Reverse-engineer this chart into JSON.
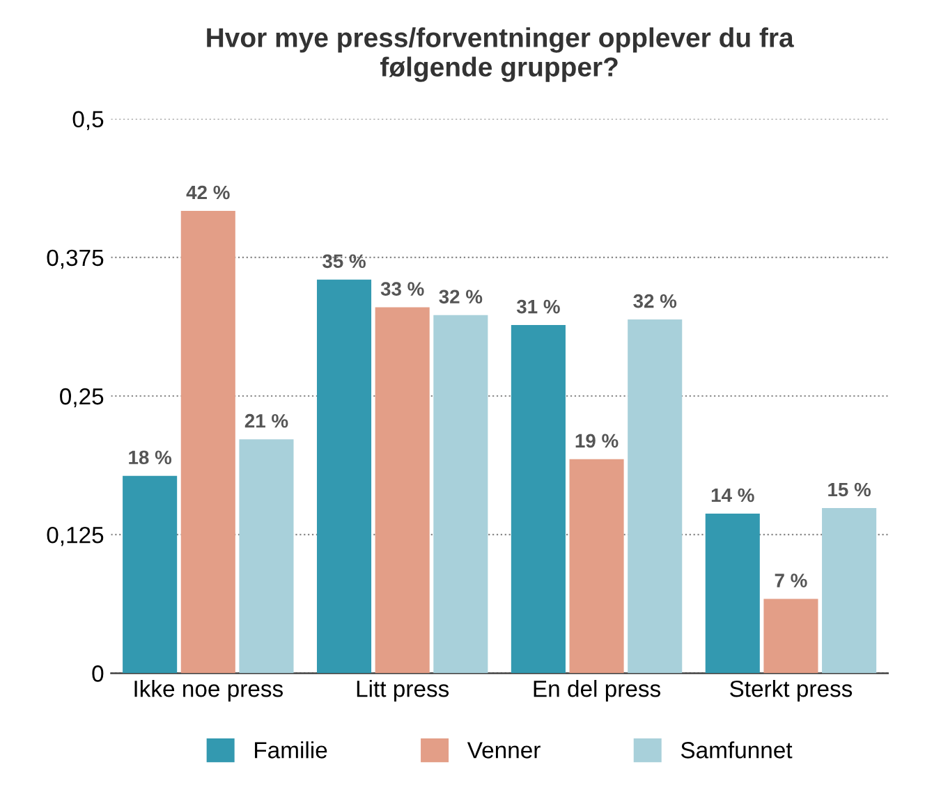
{
  "chart_data": {
    "type": "bar",
    "title": "Hvor mye press/forventninger opplever du fra\nfølgende grupper?",
    "categories": [
      "Ikke noe press",
      "Litt press",
      "En del press",
      "Sterkt press"
    ],
    "series": [
      {
        "name": "Familie",
        "color": "#3399b0",
        "values": [
          0.178,
          0.355,
          0.314,
          0.144
        ],
        "value_labels": [
          "18 %",
          "35 %",
          "31 %",
          "14 %"
        ]
      },
      {
        "name": "Venner",
        "color": "#e39e87",
        "values": [
          0.417,
          0.33,
          0.193,
          0.067
        ],
        "value_labels": [
          "42 %",
          "33 %",
          "19 %",
          "7 %"
        ]
      },
      {
        "name": "Samfunnet",
        "color": "#a8d0da",
        "values": [
          0.211,
          0.323,
          0.319,
          0.149
        ],
        "value_labels": [
          "21 %",
          "32 %",
          "32 %",
          "15 %"
        ]
      }
    ],
    "ylim": [
      0,
      0.5
    ],
    "yticks": [
      {
        "value": 0,
        "label": "0"
      },
      {
        "value": 0.125,
        "label": "0,125"
      },
      {
        "value": 0.25,
        "label": "0,25"
      },
      {
        "value": 0.375,
        "label": "0,375"
      },
      {
        "value": 0.5,
        "label": "0,5"
      }
    ],
    "grid": "y",
    "legend": "bottom"
  }
}
